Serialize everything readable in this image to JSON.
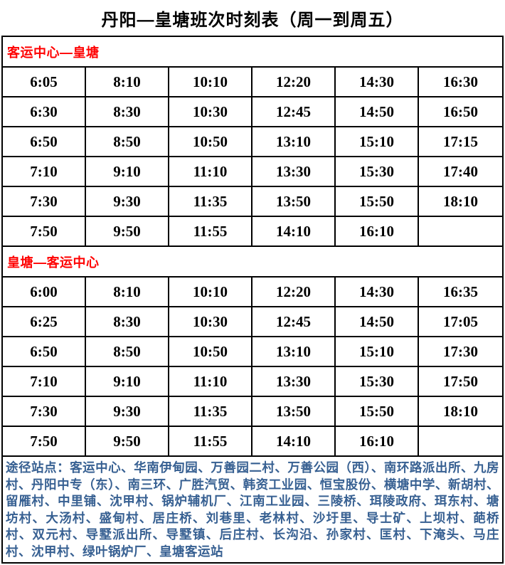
{
  "title": "丹阳—皇塘班次时刻表（周一到周五）",
  "sections": [
    {
      "header": "客运中心—皇塘",
      "rows": [
        [
          "6:05",
          "8:10",
          "10:10",
          "12:20",
          "14:30",
          "16:30"
        ],
        [
          "6:30",
          "8:30",
          "10:30",
          "12:45",
          "14:50",
          "16:50"
        ],
        [
          "6:50",
          "8:50",
          "10:50",
          "13:10",
          "15:10",
          "17:15"
        ],
        [
          "7:10",
          "9:10",
          "11:10",
          "13:30",
          "15:30",
          "17:40"
        ],
        [
          "7:30",
          "9:30",
          "11:35",
          "13:50",
          "15:50",
          "18:10"
        ],
        [
          "7:50",
          "9:50",
          "11:55",
          "14:10",
          "16:10",
          ""
        ]
      ]
    },
    {
      "header": "皇塘—客运中心",
      "rows": [
        [
          "6:00",
          "8:10",
          "10:10",
          "12:20",
          "14:30",
          "16:35"
        ],
        [
          "6:25",
          "8:30",
          "10:30",
          "12:45",
          "14:50",
          "17:05"
        ],
        [
          "6:50",
          "8:50",
          "10:50",
          "13:10",
          "15:10",
          "17:30"
        ],
        [
          "7:10",
          "9:10",
          "11:10",
          "13:30",
          "15:30",
          "17:50"
        ],
        [
          "7:30",
          "9:30",
          "11:35",
          "13:50",
          "15:50",
          "18:10"
        ],
        [
          "7:50",
          "9:50",
          "11:55",
          "14:10",
          "16:10",
          ""
        ]
      ]
    }
  ],
  "notes": "途径站点：客运中心、华南伊甸园、万善园二村、万善公园（西）、南环路派出所、九房村、丹阳中专（东）、南三环、广胜汽贸、韩资工业园、恒宝股份、横塘中学、新胡村、留雁村、中里铺、沈甲村、锅炉辅机厂、江南工业园、三陵桥、珥陵政府、珥东村、塘坊村、大汤村、盛甸村、居庄桥、刘巷里、老林村、沙圩里、导士矿、上坝村、葩桥村、双元村、导墅派出所、导墅镇、后庄村、长沟沿、孙家村、匡村、下淹头、马庄村、沈甲村、绿叶锅炉厂、皇塘客运站",
  "colors": {
    "header_red": "#ff0000",
    "notes_blue": "#376092",
    "border_black": "#000000",
    "background": "#ffffff"
  }
}
